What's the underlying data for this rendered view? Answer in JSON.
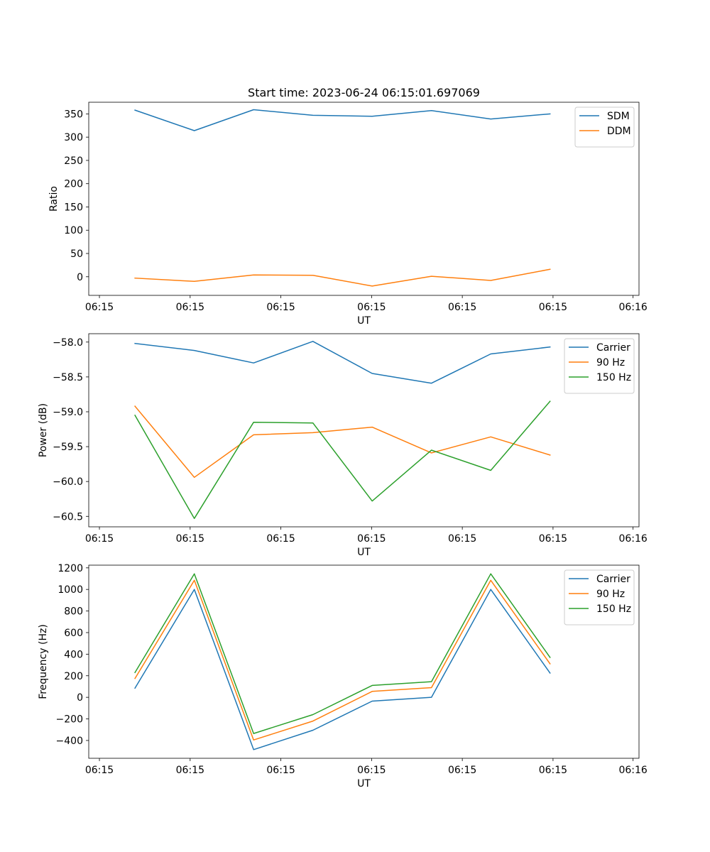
{
  "figure": {
    "title": "Start time: 2023-06-24 06:15:01.697069"
  },
  "chart_data": [
    {
      "type": "line",
      "title": "Start time: 2023-06-24 06:15:01.697069",
      "xlabel": "UT",
      "ylabel": "Ratio",
      "x": [
        0,
        1,
        2,
        3,
        4,
        5,
        6,
        7
      ],
      "xlim": [
        -0.78,
        8.5
      ],
      "x_ticks": [
        -0.6,
        0.93,
        2.46,
        3.99,
        5.52,
        7.05,
        8.4
      ],
      "x_tick_labels": [
        "06:15",
        "06:15",
        "06:15",
        "06:15",
        "06:15",
        "06:15",
        "06:16"
      ],
      "ylim": [
        -40,
        375
      ],
      "y_ticks": [
        0,
        50,
        100,
        150,
        200,
        250,
        300,
        350
      ],
      "y_tick_labels": [
        "0",
        "50",
        "100",
        "150",
        "200",
        "250",
        "300",
        "350"
      ],
      "legend_position": "top-right",
      "series": [
        {
          "name": "SDM",
          "color": "#1f77b4",
          "values": [
            358,
            314,
            359,
            347,
            345,
            357,
            339,
            350
          ]
        },
        {
          "name": "DDM",
          "color": "#ff7f0e",
          "values": [
            -3,
            -10,
            4,
            3,
            -20,
            1,
            -8,
            16
          ]
        }
      ]
    },
    {
      "type": "line",
      "title": "",
      "xlabel": "UT",
      "ylabel": "Power (dB)",
      "x": [
        0,
        1,
        2,
        3,
        4,
        5,
        6,
        7
      ],
      "xlim": [
        -0.78,
        8.5
      ],
      "x_ticks": [
        -0.6,
        0.93,
        2.46,
        3.99,
        5.52,
        7.05,
        8.4
      ],
      "x_tick_labels": [
        "06:15",
        "06:15",
        "06:15",
        "06:15",
        "06:15",
        "06:15",
        "06:16"
      ],
      "ylim": [
        -60.65,
        -57.88
      ],
      "y_ticks": [
        -60.5,
        -60.0,
        -59.5,
        -59.0,
        -58.5,
        -58.0
      ],
      "y_tick_labels": [
        "−60.5",
        "−60.0",
        "−59.5",
        "−59.0",
        "−58.5",
        "−58.0"
      ],
      "legend_position": "top-right",
      "series": [
        {
          "name": "Carrier",
          "color": "#1f77b4",
          "values": [
            -58.02,
            -58.12,
            -58.3,
            -57.99,
            -58.45,
            -58.59,
            -58.17,
            -58.07
          ]
        },
        {
          "name": "90 Hz",
          "color": "#ff7f0e",
          "values": [
            -58.92,
            -59.94,
            -59.33,
            -59.3,
            -59.22,
            -59.59,
            -59.36,
            -59.62
          ]
        },
        {
          "name": "150 Hz",
          "color": "#2ca02c",
          "values": [
            -59.05,
            -60.53,
            -59.15,
            -59.16,
            -60.28,
            -59.55,
            -59.84,
            -58.85
          ]
        }
      ]
    },
    {
      "type": "line",
      "title": "",
      "xlabel": "UT",
      "ylabel": "Frequency (Hz)",
      "x": [
        0,
        1,
        2,
        3,
        4,
        5,
        6,
        7
      ],
      "xlim": [
        -0.78,
        8.5
      ],
      "x_ticks": [
        -0.6,
        0.93,
        2.46,
        3.99,
        5.52,
        7.05,
        8.4
      ],
      "x_tick_labels": [
        "06:15",
        "06:15",
        "06:15",
        "06:15",
        "06:15",
        "06:15",
        "06:16"
      ],
      "ylim": [
        -565,
        1225
      ],
      "y_ticks": [
        -400,
        -200,
        0,
        200,
        400,
        600,
        800,
        1000,
        1200
      ],
      "y_tick_labels": [
        "−400",
        "−200",
        "0",
        "200",
        "400",
        "600",
        "800",
        "1000",
        "1200"
      ],
      "legend_position": "top-right",
      "series": [
        {
          "name": "Carrier",
          "color": "#1f77b4",
          "values": [
            85,
            1000,
            -485,
            -305,
            -35,
            0,
            1000,
            225
          ]
        },
        {
          "name": "90 Hz",
          "color": "#ff7f0e",
          "values": [
            175,
            1085,
            -395,
            -220,
            55,
            90,
            1085,
            310
          ]
        },
        {
          "name": "150 Hz",
          "color": "#2ca02c",
          "values": [
            230,
            1145,
            -335,
            -160,
            110,
            145,
            1145,
            370
          ]
        }
      ]
    }
  ]
}
